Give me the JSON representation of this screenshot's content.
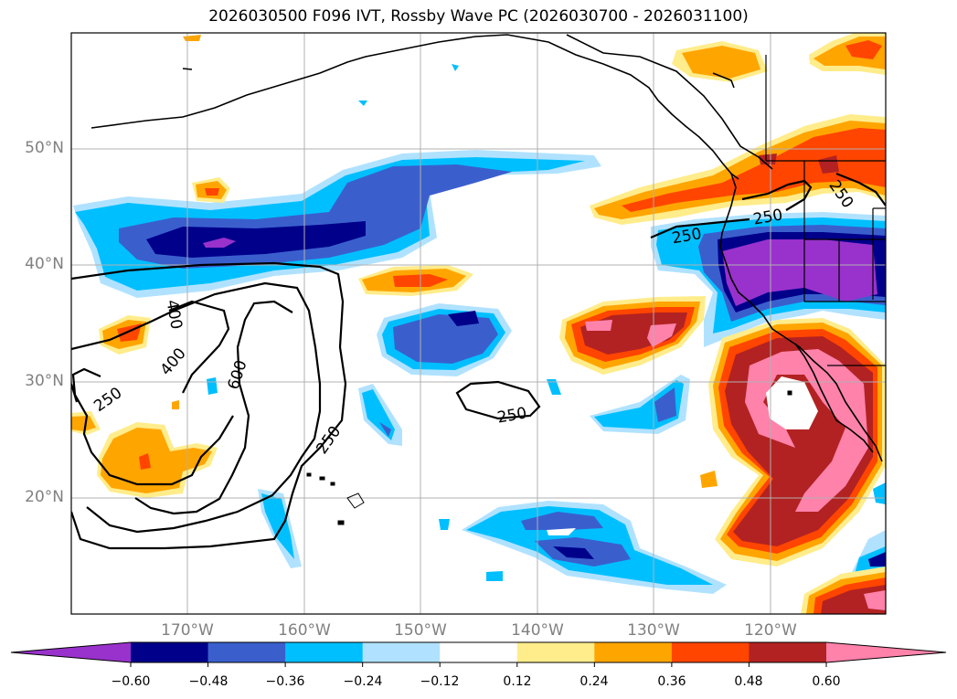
{
  "title": "2026030500 F096 IVT, Rossby Wave PC (2026030700 - 2026031100)",
  "lat_labels": [
    "50°N",
    "40°N",
    "30°N",
    "20°N"
  ],
  "lon_labels": [
    "170°W",
    "160°W",
    "150°W",
    "140°W",
    "130°W",
    "120°W"
  ],
  "contour_labels": {
    "c400a": "400",
    "c400b": "400",
    "c250a": "250",
    "c600": "600",
    "c250b": "250",
    "c250c": "250",
    "c250d": "250",
    "c250e": "250",
    "c250f": "250"
  },
  "colorbar": {
    "labels": [
      "−0.60",
      "−0.48",
      "−0.36",
      "−0.24",
      "−0.12",
      "0.12",
      "0.24",
      "0.36",
      "0.48",
      "0.60"
    ],
    "colors": [
      "#9932cc",
      "#00008b",
      "#3a5fcd",
      "#00bfff",
      "#b0e2ff",
      "#ffffff",
      "#ffec8b",
      "#ffa500",
      "#ff4500",
      "#b22222",
      "#ff82ab"
    ]
  }
}
